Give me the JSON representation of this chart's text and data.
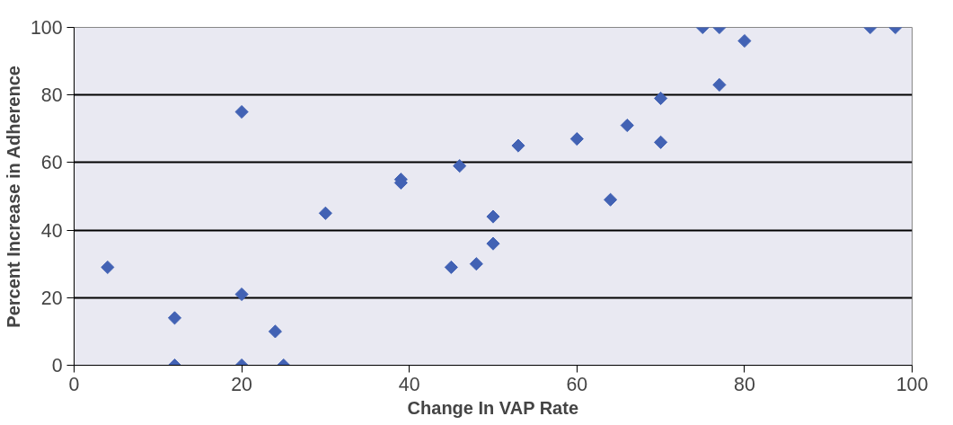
{
  "chart_data": {
    "type": "scatter",
    "xlabel": "Change In VAP Rate",
    "ylabel": "Percent Increase in Adherence",
    "x": [
      4,
      12,
      12,
      20,
      20,
      20,
      24,
      25,
      30,
      39,
      39,
      45,
      46,
      48,
      50,
      50,
      53,
      60,
      64,
      66,
      70,
      70,
      75,
      77,
      77,
      80,
      95,
      98
    ],
    "series": [
      {
        "color": "#4262b4",
        "values": [
          29,
          14,
          0,
          75,
          21,
          0,
          10,
          0,
          45,
          55,
          54,
          29,
          59,
          30,
          44,
          36,
          65,
          67,
          49,
          71,
          79,
          66,
          100,
          100,
          83,
          96,
          100,
          100
        ]
      }
    ],
    "xlim": [
      0,
      100
    ],
    "ylim": [
      0,
      100
    ],
    "xticks": [
      0,
      20,
      40,
      60,
      80,
      100
    ],
    "yticks": [
      0,
      20,
      40,
      60,
      80,
      100
    ],
    "grid": "y",
    "marker": "diamond"
  }
}
